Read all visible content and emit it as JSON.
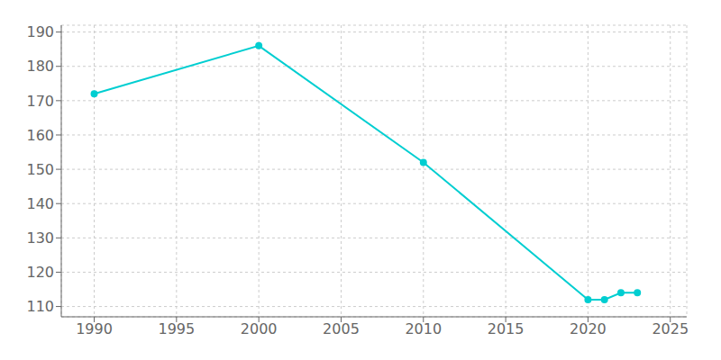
{
  "chart_data": {
    "type": "line",
    "x": [
      1990,
      2000,
      2010,
      2020,
      2021,
      2022,
      2023
    ],
    "values": [
      172,
      186,
      152,
      112,
      112,
      114,
      114
    ],
    "color": "#00CED1",
    "marker": "circle",
    "xlim": [
      1988,
      2026
    ],
    "xticks": [
      1990,
      1995,
      2000,
      2005,
      2010,
      2015,
      2020,
      2025
    ],
    "ylim": [
      107,
      192
    ],
    "yticks": [
      110,
      120,
      130,
      140,
      150,
      160,
      170,
      180,
      190
    ],
    "grid": true
  }
}
